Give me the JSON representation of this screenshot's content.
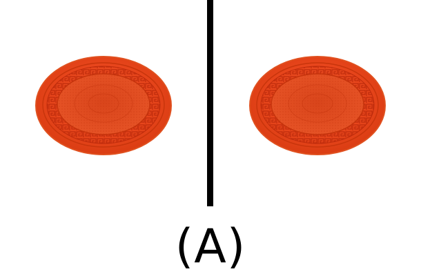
{
  "figure": {
    "caption": "(A)",
    "plates": [
      {
        "name": "left-plate",
        "color": "#e8461c",
        "rim_color": "#d9380f",
        "pattern_color": "#c72e0a",
        "center_color": "#e54e24"
      },
      {
        "name": "right-plate",
        "color": "#e8461c",
        "rim_color": "#d9380f",
        "pattern_color": "#c72e0a",
        "center_color": "#e54e24"
      }
    ],
    "divider_color": "#000000"
  }
}
